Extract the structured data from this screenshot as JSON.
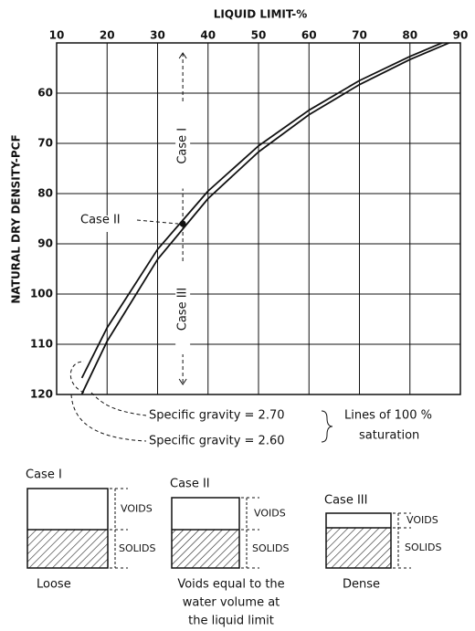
{
  "chart_data": {
    "type": "line",
    "xlabel": "LIQUID LIMIT-%",
    "ylabel": "NATURAL DRY DENSITY-PCF",
    "x": [
      15,
      20,
      30,
      40,
      50,
      60,
      70,
      80,
      88
    ],
    "series": [
      {
        "name": "Specific gravity = 2.70",
        "color": "#111",
        "values": [
          119.9,
          109.4,
          93.1,
          81.0,
          71.7,
          64.3,
          58.3,
          53.3,
          49.9
        ]
      },
      {
        "name": "Specific gravity = 2.60",
        "color": "#111",
        "values": [
          116.7,
          106.7,
          91.1,
          79.5,
          70.5,
          63.4,
          57.5,
          52.7,
          49.3
        ]
      }
    ],
    "xlim": [
      10,
      90
    ],
    "xticks": [
      10,
      20,
      30,
      40,
      50,
      60,
      70,
      80,
      90
    ],
    "ylim": [
      50,
      120
    ],
    "yticks": [
      60,
      70,
      80,
      90,
      100,
      110,
      120
    ],
    "y_inverted": true,
    "grid": true,
    "legend_title": [
      "Lines of 100 %",
      "saturation"
    ],
    "annotations": {
      "case1": "Case I",
      "case2": "Case II",
      "case3": "Case III",
      "point": {
        "x": 35,
        "y": 86
      }
    }
  },
  "diagram": {
    "cases": [
      {
        "title": "Case I",
        "voids": "VOIDS",
        "solids": "SOLIDS",
        "caption": [
          "Loose"
        ]
      },
      {
        "title": "Case II",
        "voids": "VOIDS",
        "solids": "SOLIDS",
        "caption": [
          "Voids equal to the",
          "water volume at",
          "the liquid limit"
        ]
      },
      {
        "title": "Case III",
        "voids": "VOIDS",
        "solids": "SOLIDS",
        "caption": [
          "Dense"
        ]
      }
    ]
  }
}
